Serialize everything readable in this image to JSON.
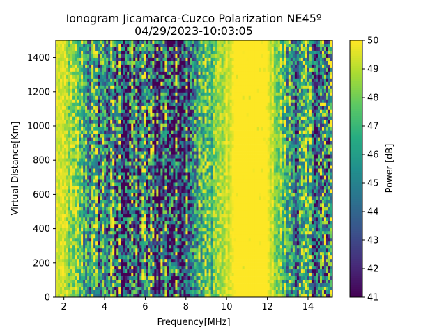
{
  "chart_data": {
    "type": "heatmap",
    "title": "Ionogram Jicamarca-Cuzco Polarization NE45º",
    "subtitle": "04/29/2023-10:03:05",
    "xlabel": "Frequency[MHz]",
    "ylabel": "Virtual Distance[Km]",
    "xlim": [
      1.6,
      15.2
    ],
    "ylim": [
      0,
      1500
    ],
    "x_ticks": [
      2,
      4,
      6,
      8,
      10,
      12,
      14
    ],
    "y_ticks": [
      0,
      200,
      400,
      600,
      800,
      1000,
      1200,
      1400
    ],
    "x_tick_labels": [
      "2",
      "4",
      "6",
      "8",
      "10",
      "12",
      "14"
    ],
    "y_tick_labels": [
      "0",
      "200",
      "400",
      "600",
      "800",
      "1000",
      "1200",
      "1400"
    ],
    "colorbar": {
      "label": "Power [dB]",
      "min": 41,
      "max": 50,
      "ticks": [
        41,
        42,
        43,
        44,
        45,
        46,
        47,
        48,
        49,
        50
      ],
      "tick_labels": [
        "41",
        "42",
        "43",
        "44",
        "45",
        "46",
        "47",
        "48",
        "49",
        "50"
      ],
      "colormap": "viridis"
    },
    "frequency_band_mean_power": [
      {
        "f": 1.6,
        "db": 49.5
      },
      {
        "f": 2.0,
        "db": 49.2
      },
      {
        "f": 2.5,
        "db": 48.0
      },
      {
        "f": 3.0,
        "db": 47.0
      },
      {
        "f": 3.5,
        "db": 45.5
      },
      {
        "f": 4.0,
        "db": 46.0
      },
      {
        "f": 4.5,
        "db": 44.5
      },
      {
        "f": 5.0,
        "db": 43.5
      },
      {
        "f": 5.5,
        "db": 44.0
      },
      {
        "f": 6.0,
        "db": 45.0
      },
      {
        "f": 6.5,
        "db": 43.5
      },
      {
        "f": 7.0,
        "db": 44.5
      },
      {
        "f": 7.5,
        "db": 43.0
      },
      {
        "f": 8.0,
        "db": 45.0
      },
      {
        "f": 8.5,
        "db": 46.5
      },
      {
        "f": 9.0,
        "db": 47.0
      },
      {
        "f": 9.5,
        "db": 48.5
      },
      {
        "f": 10.0,
        "db": 49.2
      },
      {
        "f": 10.5,
        "db": 50.0
      },
      {
        "f": 11.0,
        "db": 50.0
      },
      {
        "f": 11.5,
        "db": 50.0
      },
      {
        "f": 12.0,
        "db": 49.8
      },
      {
        "f": 12.5,
        "db": 48.5
      },
      {
        "f": 13.0,
        "db": 46.5
      },
      {
        "f": 13.5,
        "db": 45.5
      },
      {
        "f": 14.0,
        "db": 46.0
      },
      {
        "f": 14.5,
        "db": 45.0
      },
      {
        "f": 15.0,
        "db": 44.5
      }
    ]
  }
}
